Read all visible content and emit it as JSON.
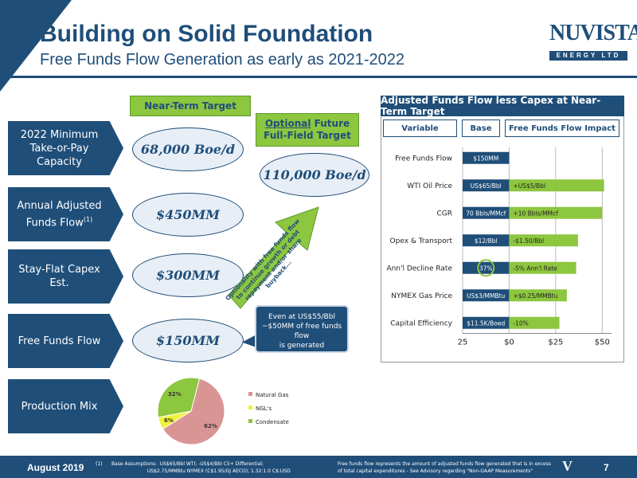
{
  "header": {
    "title": "Building on Solid Foundation",
    "subtitle": "Free Funds Flow Generation as early as 2021-2022",
    "logo_main": "NUVISTA",
    "logo_sub": "ENERGY LTD"
  },
  "left": {
    "near_term_label": "Near-Term Target",
    "future_label_1": "Optional",
    "future_label_2": " Future",
    "future_label_3": "Full-Field Target",
    "rows": [
      {
        "label_1": "2022 Minimum",
        "label_2": "Take-or-Pay",
        "label_3": "Capacity",
        "value": "68,000 Boe/d"
      },
      {
        "label_1": "Annual Adjusted",
        "label_2": "Funds Flow",
        "sup": "(1)",
        "value": "$450MM"
      },
      {
        "label_1": "Stay-Flat Capex",
        "label_2": "Est.",
        "value": "$300MM"
      },
      {
        "label_1": "Free Funds Flow",
        "value": "$150MM"
      },
      {
        "label_1": "Production Mix"
      }
    ],
    "future_value": "110,000 Boe/d",
    "diag_1": "Optionality with free funds flow",
    "diag_2": "to continue growth or debt",
    "diag_3": "repayment and/or share",
    "diag_4": "buyback...",
    "callout_1": "Even at US$55/Bbl",
    "callout_2": "~$50MM of free funds flow",
    "callout_3": "is generated"
  },
  "pie": {
    "slices": [
      {
        "name": "Natural Gas",
        "value": 62,
        "label": "62%",
        "color": "#d99594"
      },
      {
        "name": "NGL's",
        "value": 6,
        "label": "6%",
        "color": "#f2f23a"
      },
      {
        "name": "Condensate",
        "value": 32,
        "label": "32%",
        "color": "#8dc63f"
      }
    ]
  },
  "panel": {
    "title": "Adjusted Funds Flow less Capex at Near-Term Target",
    "col_variable": "Variable",
    "col_base": "Base",
    "col_impact": "Free Funds Flow Impact"
  },
  "chart_data": {
    "type": "bar",
    "orientation": "horizontal",
    "categories": [
      "Free Funds Flow",
      "WTI Oil Price",
      "CGR",
      "Opex & Transport",
      "Ann'l Decline Rate",
      "NYMEX Gas Price",
      "Capital Efficiency"
    ],
    "series": [
      {
        "values": [
          0,
          0,
          0,
          0,
          0,
          0,
          0
        ],
        "labels": [
          "$150MM",
          "US$65/Bbl",
          "70 Bbls/MMcf",
          "$12/Bbl",
          "37%",
          "US$3/MMBtu",
          "$11.5K/Boed"
        ],
        "color": "#1f4e79"
      },
      {
        "values": [
          0,
          51,
          50,
          37,
          36,
          31,
          27
        ],
        "labels": [
          "",
          "+US$5/Bbl",
          "+10 Bbls/MMcf",
          "-$1.50/Bbl",
          "-5% Ann'l Rate",
          "+$0.25/MMBtu",
          "-10%"
        ],
        "color": "#8dc63f"
      }
    ],
    "base_left": -25,
    "xlim": [
      -25,
      55
    ],
    "xticks": [
      "25",
      "$0",
      "$25",
      "$50"
    ],
    "xtick_values": [
      -25,
      0,
      25,
      50
    ],
    "grid": true,
    "highlight_circle": "Ann'l Decline Rate"
  },
  "footer": {
    "date": "August 2019",
    "fn_1": "(1)      Base Assumptions:  US$65/Bbl WTI; -US$4/Bbl C5+ Differential;",
    "fn_2": "                                  US$2.75/MMBtu NYMEX (C$1.95/GJ AECO); 1.32:1.0 C$:USD",
    "right_1": "Free funds flow represents the amount of adjusted funds flow generated that is in excess",
    "right_2": "of total capital expenditures - See Advisory regarding \"Non-GAAP Measurements\"",
    "logo_glyph": "V",
    "page": "7"
  }
}
